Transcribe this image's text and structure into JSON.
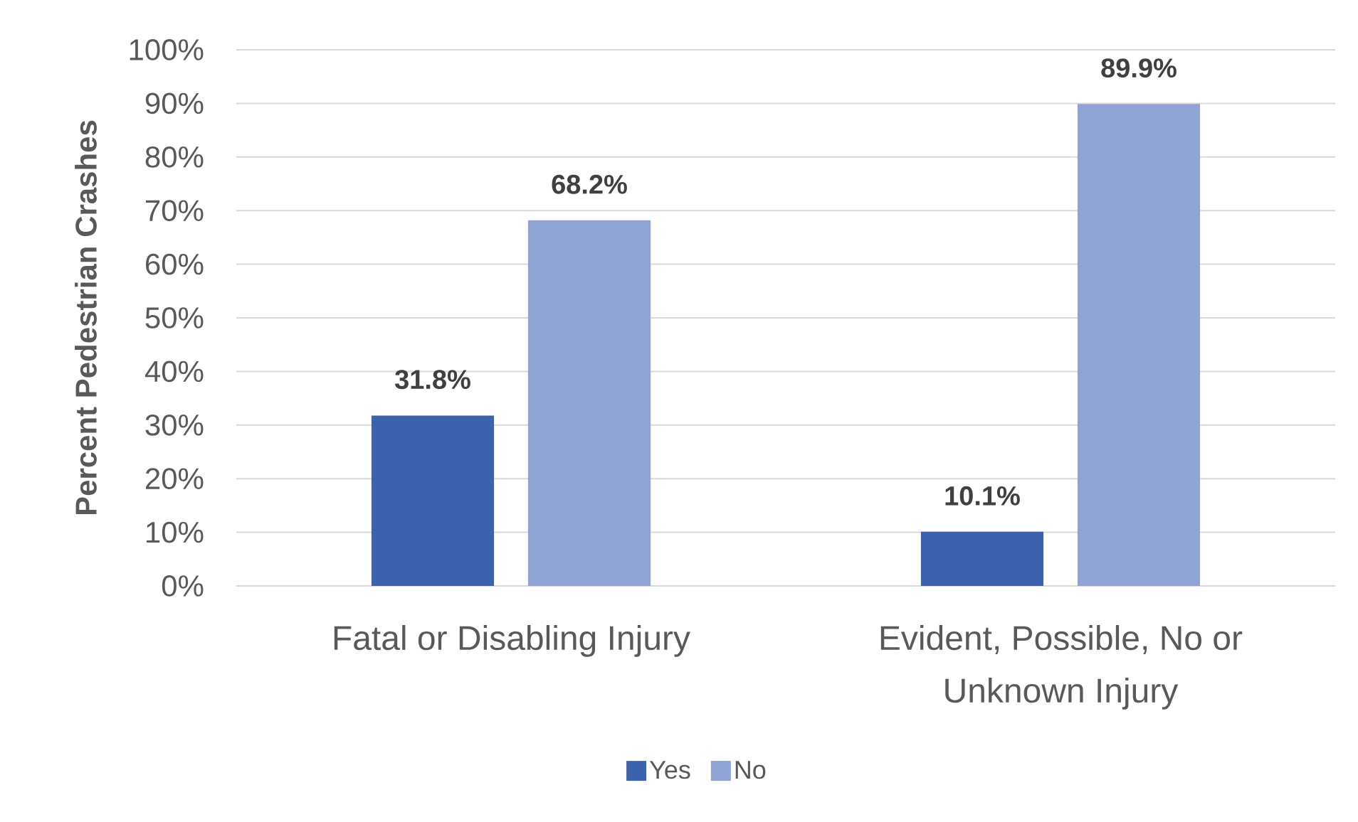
{
  "chart_data": {
    "type": "bar",
    "ylabel": "Percent Pedestrian Crashes",
    "categories": [
      "Fatal or Disabling Injury",
      "Evident, Possible, No or Unknown Injury"
    ],
    "series": [
      {
        "name": "Yes",
        "color": "#3a62ad",
        "values": [
          31.8,
          10.1
        ],
        "value_labels": [
          "31.8%",
          "10.1%"
        ]
      },
      {
        "name": "No",
        "color": "#8fa4d4",
        "values": [
          68.2,
          89.9
        ],
        "value_labels": [
          "68.2%",
          "89.9%"
        ]
      }
    ],
    "ylim": [
      0,
      100
    ],
    "yticks": [
      {
        "value": 0,
        "label": "0%"
      },
      {
        "value": 10,
        "label": "10%"
      },
      {
        "value": 20,
        "label": "20%"
      },
      {
        "value": 30,
        "label": "30%"
      },
      {
        "value": 40,
        "label": "40%"
      },
      {
        "value": 50,
        "label": "50%"
      },
      {
        "value": 60,
        "label": "60%"
      },
      {
        "value": 70,
        "label": "70%"
      },
      {
        "value": 80,
        "label": "80%"
      },
      {
        "value": 90,
        "label": "90%"
      },
      {
        "value": 100,
        "label": "100%"
      }
    ],
    "grid": "y",
    "legend": "bottom"
  }
}
